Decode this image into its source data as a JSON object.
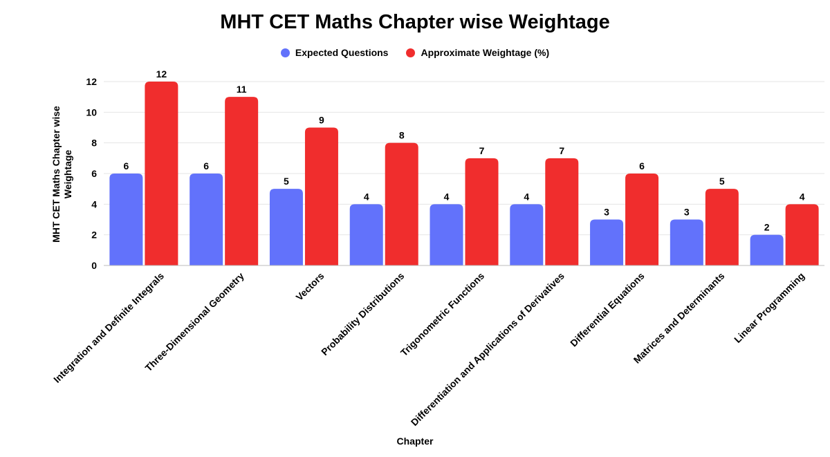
{
  "chart_data": {
    "type": "bar",
    "title": "MHT CET Maths Chapter wise Weightage",
    "xlabel": "Chapter",
    "ylabel": "MHT CET Maths Chapter wise Weightage",
    "ylim": [
      0,
      12
    ],
    "yticks": [
      0,
      2,
      4,
      6,
      8,
      10,
      12
    ],
    "grid": true,
    "legend_position": "top-center",
    "categories": [
      "Integration and Definite Integrals",
      "Three-Dimensional Geometry",
      "Vectors",
      "Probability Distributions",
      "Trigonometric Functions",
      "Differentiation and Applications of Derivatives",
      "Differential Equations",
      "Matrices and Determinants",
      "Linear Programming"
    ],
    "series": [
      {
        "name": "Expected Questions",
        "color": "#6272fb",
        "values": [
          6,
          6,
          5,
          4,
          4,
          4,
          3,
          3,
          2
        ]
      },
      {
        "name": "Approximate Weightage (%)",
        "color": "#f02d2d",
        "values": [
          12,
          11,
          9,
          8,
          7,
          7,
          6,
          5,
          4
        ]
      }
    ]
  }
}
